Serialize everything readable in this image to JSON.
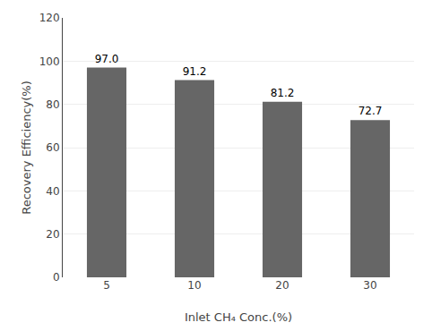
{
  "chart_data": {
    "type": "bar",
    "categories": [
      "5",
      "10",
      "20",
      "30"
    ],
    "values": [
      97.0,
      91.2,
      81.2,
      72.7
    ],
    "value_labels": [
      "97.0",
      "91.2",
      "81.2",
      "72.7"
    ],
    "data_labels": true,
    "color": "#666666",
    "xlabel": "Inlet CH₄ Conc.(%)",
    "ylabel": "Recovery Efficiency(%)",
    "ylim": [
      0,
      120
    ],
    "yticks": [
      0,
      20,
      40,
      60,
      80,
      100,
      120
    ],
    "grid": true
  }
}
